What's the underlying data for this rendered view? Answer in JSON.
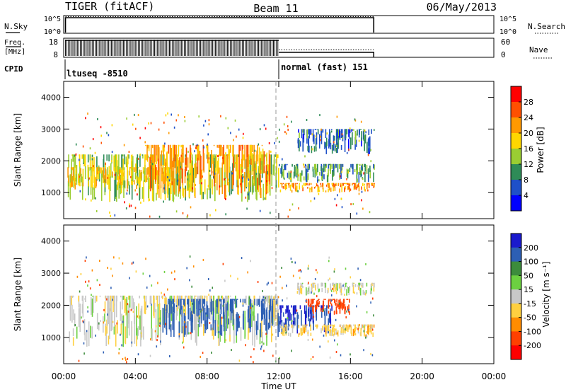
{
  "header": {
    "title": "TIGER (fitACF)",
    "beam": "Beam 11",
    "date": "06/May/2013"
  },
  "nsky_panel": {
    "label": "N.Sky",
    "ticks_left": [
      "10^5",
      "10^0"
    ],
    "ticks_right": [
      "10^5",
      "10^0"
    ],
    "right_label": "N.Search"
  },
  "freq_panel": {
    "label_line1": "Freq.",
    "label_line2": "[MHz]",
    "ticks_left": [
      "18",
      "8"
    ],
    "ticks_right": [
      "60",
      "0"
    ],
    "right_label": "Nave"
  },
  "cpid": {
    "label": "CPID",
    "segments": [
      {
        "start_hour": 0,
        "end_hour": 12,
        "text": "ltuseq -8510"
      },
      {
        "start_hour": 12,
        "end_hour": 17.3,
        "text": "normal (fast) 151"
      }
    ]
  },
  "time_axis": {
    "label": "Time UT",
    "ticks": [
      "00:00",
      "04:00",
      "08:00",
      "12:00",
      "16:00",
      "20:00",
      "00:00"
    ]
  },
  "data_end_hour": 17.3,
  "power_panel": {
    "ylabel": "Slant Range [km]",
    "yticks": [
      "4000",
      "3000",
      "2000",
      "1000"
    ],
    "ytick_values": [
      4000,
      3000,
      2000,
      1000
    ],
    "colorbar_label": "Power [dB]",
    "colorbar_ticks": [
      "28",
      "24",
      "20",
      "16",
      "12",
      "8",
      "4"
    ],
    "colorbar_colors": [
      "#ff0000",
      "#ff5000",
      "#ff9900",
      "#ffd700",
      "#9acd32",
      "#2e8b57",
      "#1e50c8",
      "#0000ff"
    ]
  },
  "velocity_panel": {
    "ylabel": "Slant Range [km]",
    "yticks": [
      "4000",
      "3000",
      "2000",
      "1000"
    ],
    "ytick_values": [
      4000,
      3000,
      2000,
      1000
    ],
    "colorbar_label": "Velocity [m s⁻¹]",
    "colorbar_ticks": [
      "200",
      "100",
      "50",
      "15",
      "-15",
      "-50",
      "-100",
      "-200"
    ],
    "colorbar_colors": [
      "#1a1acd",
      "#2d5fb4",
      "#3c8c3c",
      "#6cd040",
      "#c8c8c8",
      "#ffd040",
      "#ff8c00",
      "#ff4000",
      "#ff0000"
    ]
  },
  "chart_data": {
    "type": "heatmap",
    "x_range_hours": [
      0,
      24
    ],
    "y_range_km": [
      180,
      4500
    ],
    "regions": [
      {
        "panel": "power",
        "t0": 0.2,
        "t1": 12,
        "r0": 700,
        "r1": 2200,
        "value": 14
      },
      {
        "panel": "power",
        "t0": 0.2,
        "t1": 6,
        "r0": 1100,
        "r1": 1800,
        "value": 18
      },
      {
        "panel": "power",
        "t0": 4.5,
        "t1": 11.5,
        "r0": 800,
        "r1": 2500,
        "value": 22
      },
      {
        "panel": "power",
        "t0": 12,
        "t1": 17.3,
        "r0": 1000,
        "r1": 1300,
        "value": 22
      },
      {
        "panel": "power",
        "t0": 12,
        "t1": 17.3,
        "r0": 1300,
        "r1": 1900,
        "value": 10
      },
      {
        "panel": "power",
        "t0": 13,
        "t1": 17.3,
        "r0": 2200,
        "r1": 3000,
        "value": 8
      },
      {
        "panel": "velocity",
        "t0": 0.2,
        "t1": 12,
        "r0": 700,
        "r1": 2300,
        "value": 0
      },
      {
        "panel": "velocity",
        "t0": 5.5,
        "t1": 12,
        "r0": 1000,
        "r1": 2200,
        "value": 150
      },
      {
        "panel": "velocity",
        "t0": 12,
        "t1": 15,
        "r0": 1100,
        "r1": 2000,
        "value": 200
      },
      {
        "panel": "velocity",
        "t0": 13.5,
        "t1": 16,
        "r0": 1700,
        "r1": 2200,
        "value": -150
      },
      {
        "panel": "velocity",
        "t0": 12,
        "t1": 17.3,
        "r0": 1000,
        "r1": 1400,
        "value": -30
      },
      {
        "panel": "velocity",
        "t0": 13,
        "t1": 17.3,
        "r0": 2300,
        "r1": 2700,
        "value": 0
      }
    ]
  }
}
